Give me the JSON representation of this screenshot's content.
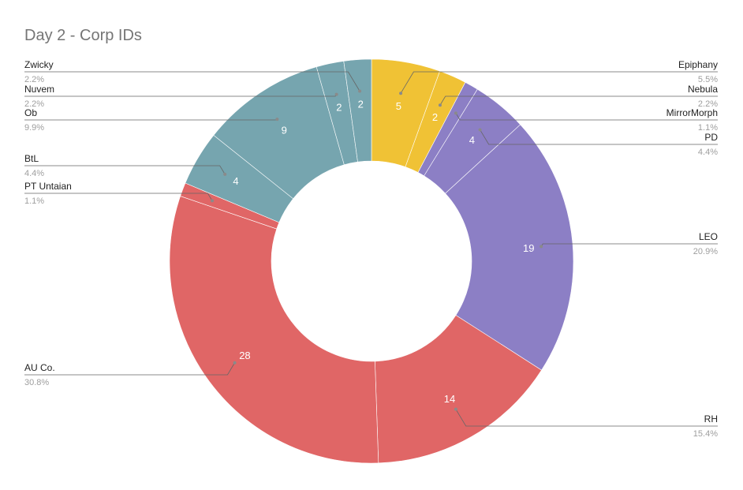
{
  "chart_data": {
    "type": "pie",
    "title": "Day 2 - Corp IDs",
    "donut": true,
    "start_angle_deg": 0,
    "direction": "clockwise",
    "slices": [
      {
        "label": "Epiphany",
        "value": 5,
        "percent": "5.5%",
        "color": "#f0c235",
        "side": "right"
      },
      {
        "label": "Nebula",
        "value": 2,
        "percent": "2.2%",
        "color": "#f0c235",
        "side": "right"
      },
      {
        "label": "MirrorMorph",
        "value": 1,
        "percent": "1.1%",
        "color": "#8c7fc5",
        "side": "right",
        "show_value": false
      },
      {
        "label": "PD",
        "value": 4,
        "percent": "4.4%",
        "color": "#8c7fc5",
        "side": "right"
      },
      {
        "label": "LEO",
        "value": 19,
        "percent": "20.9%",
        "color": "#8c7fc5",
        "side": "right"
      },
      {
        "label": "RH",
        "value": 14,
        "percent": "15.4%",
        "color": "#e06666",
        "side": "right"
      },
      {
        "label": "AU Co.",
        "value": 28,
        "percent": "30.8%",
        "color": "#e06666",
        "side": "left"
      },
      {
        "label": "PT Untaian",
        "value": 1,
        "percent": "1.1%",
        "color": "#e06666",
        "side": "left",
        "show_value": false
      },
      {
        "label": "BtL",
        "value": 4,
        "percent": "4.4%",
        "color": "#76a5af",
        "side": "left"
      },
      {
        "label": "Ob",
        "value": 9,
        "percent": "9.9%",
        "color": "#76a5af",
        "side": "left"
      },
      {
        "label": "Nuvem",
        "value": 2,
        "percent": "2.2%",
        "color": "#76a5af",
        "side": "left"
      },
      {
        "label": "Zwicky",
        "value": 2,
        "percent": "2.2%",
        "color": "#76a5af",
        "side": "left"
      }
    ]
  }
}
